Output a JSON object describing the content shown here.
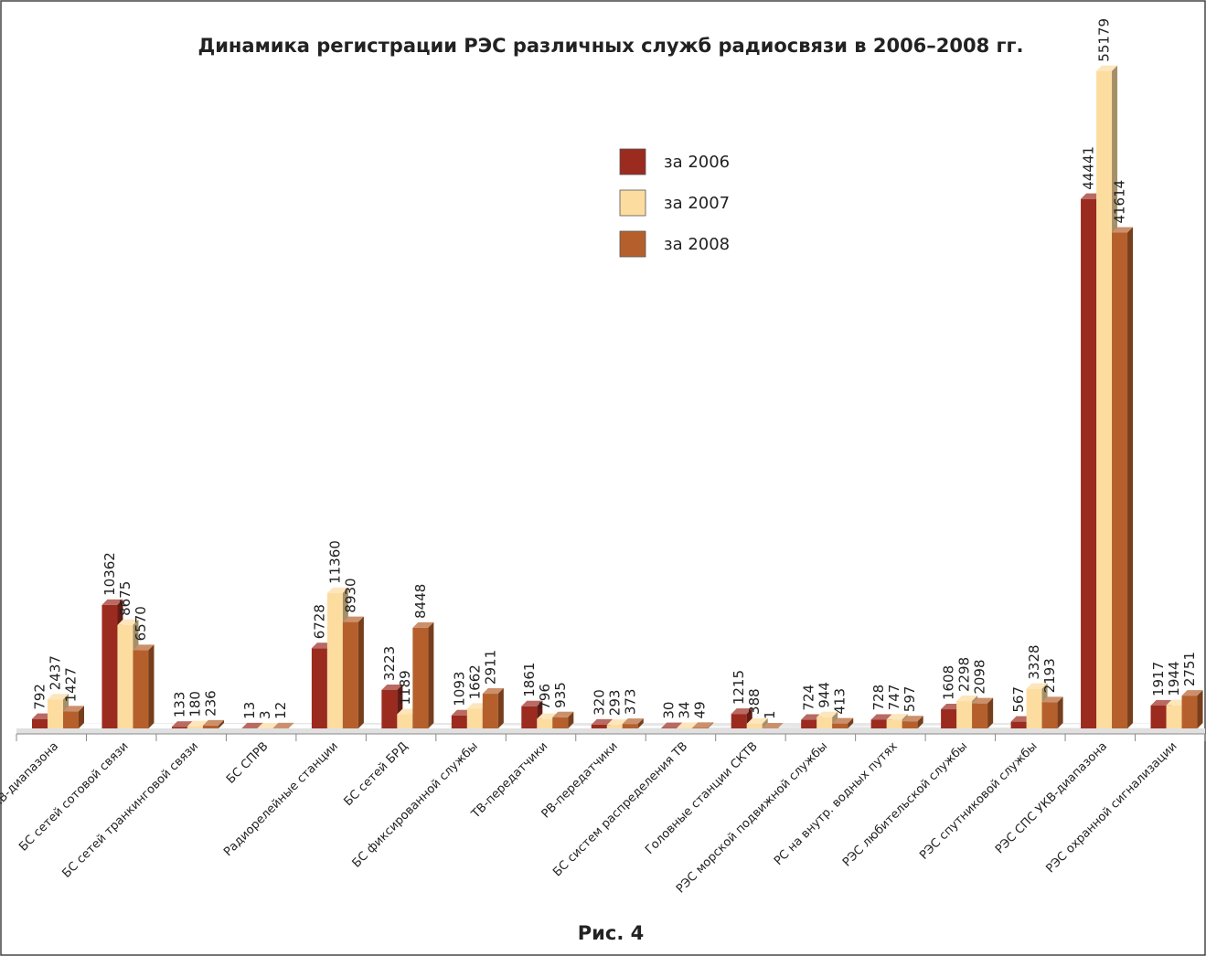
{
  "chart_data": {
    "type": "bar3d",
    "title": "Динамика регистрации РЭС различных служб радиосвязи в 2006–2008 гг.",
    "caption": "Рис. 4",
    "categories": [
      "РЭС КВ-диапазона",
      "БС сетей сотовой связи",
      "БС сетей транкинговой связи",
      "БС СПРВ",
      "Радиорелейные станции",
      "БС сетей БРД",
      "БС фиксированной службы",
      "ТВ-передатчики",
      "РВ-передатчики",
      "БС систем распределения ТВ",
      "Головные станции СКТВ",
      "РЭС морской подвижной службы",
      "РС на внутр. водных путях",
      "РЭС любительской службы",
      "РЭС спутниковой службы",
      "РЭС СПС УКВ-диапазона",
      "РЭС охранной сигнализации"
    ],
    "series": [
      {
        "name": "за 2006",
        "color": "#9b2a1f",
        "values": [
          792,
          10362,
          133,
          13,
          6728,
          3223,
          1093,
          1861,
          320,
          30,
          1215,
          724,
          728,
          1608,
          567,
          44441,
          1917
        ]
      },
      {
        "name": "за 2007",
        "color": "#fddca0",
        "values": [
          2437,
          8675,
          180,
          3,
          11360,
          1189,
          1662,
          796,
          293,
          34,
          388,
          944,
          747,
          2298,
          3328,
          55179,
          1944
        ]
      },
      {
        "name": "за 2008",
        "color": "#b5602c",
        "values": [
          1427,
          6570,
          236,
          12,
          8930,
          8448,
          2911,
          935,
          373,
          49,
          1,
          413,
          597,
          2098,
          2193,
          41614,
          2751
        ]
      }
    ],
    "ylim": [
      0,
      56000
    ],
    "legend": "top-center"
  }
}
